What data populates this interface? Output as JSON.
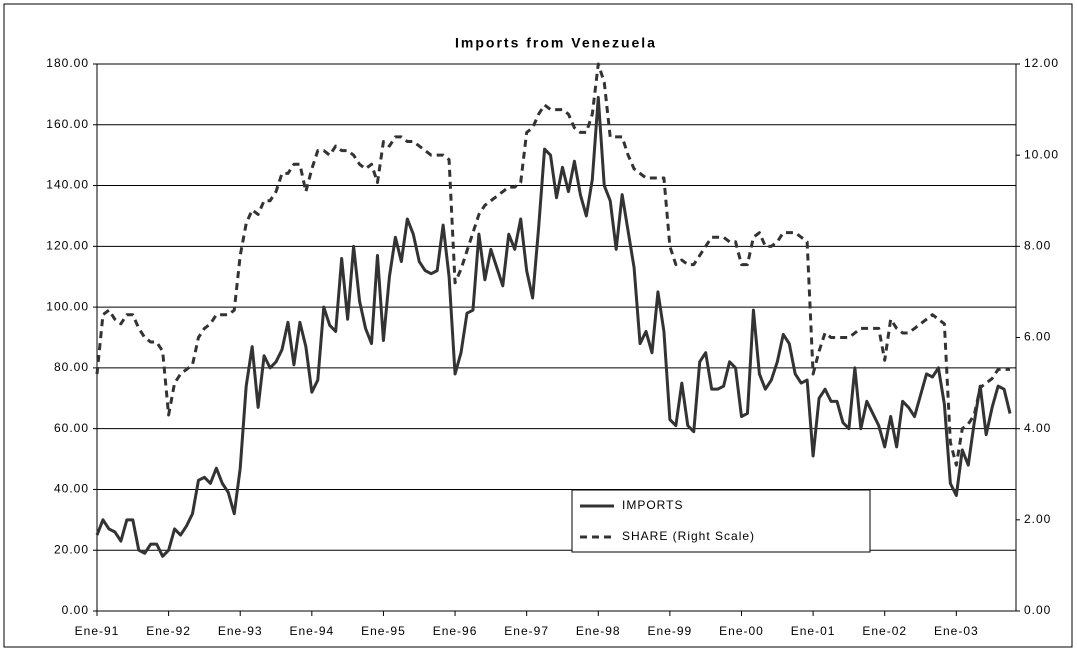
{
  "chart_data": {
    "type": "line",
    "title": "Imports from Venezuela",
    "categories": [
      "Ene-91",
      null,
      null,
      null,
      null,
      null,
      null,
      null,
      null,
      null,
      null,
      null,
      "Ene-92",
      null,
      null,
      null,
      null,
      null,
      null,
      null,
      null,
      null,
      null,
      null,
      "Ene-93",
      null,
      null,
      null,
      null,
      null,
      null,
      null,
      null,
      null,
      null,
      null,
      "Ene-94",
      null,
      null,
      null,
      null,
      null,
      null,
      null,
      null,
      null,
      null,
      null,
      "Ene-95",
      null,
      null,
      null,
      null,
      null,
      null,
      null,
      null,
      null,
      null,
      null,
      "Ene-96",
      null,
      null,
      null,
      null,
      null,
      null,
      null,
      null,
      null,
      null,
      null,
      "Ene-97",
      null,
      null,
      null,
      null,
      null,
      null,
      null,
      null,
      null,
      null,
      null,
      "Ene-98",
      null,
      null,
      null,
      null,
      null,
      null,
      null,
      null,
      null,
      null,
      null,
      "Ene-99",
      null,
      null,
      null,
      null,
      null,
      null,
      null,
      null,
      null,
      null,
      null,
      "Ene-00",
      null,
      null,
      null,
      null,
      null,
      null,
      null,
      null,
      null,
      null,
      null,
      "Ene-01",
      null,
      null,
      null,
      null,
      null,
      null,
      null,
      null,
      null,
      null,
      null,
      "Ene-02",
      null,
      null,
      null,
      null,
      null,
      null,
      null,
      null,
      null,
      null,
      null,
      "Ene-03",
      null,
      null,
      null,
      null,
      null,
      null,
      null,
      null,
      null
    ],
    "series": [
      {
        "name": "IMPORTS",
        "color": "#333333",
        "style": "solid",
        "values": [
          25,
          30,
          27,
          26,
          23,
          30,
          30,
          20,
          19,
          22,
          22,
          18,
          20,
          27,
          25,
          28,
          32,
          43,
          44,
          42,
          47,
          42,
          39,
          32,
          47,
          74,
          87,
          67,
          84,
          80,
          82,
          86,
          95,
          81,
          95,
          87,
          72,
          76,
          100,
          94,
          92,
          116,
          96,
          120,
          102,
          93,
          88,
          117,
          89,
          110,
          123,
          115,
          129,
          124,
          115,
          112,
          111,
          112,
          127,
          110,
          78,
          85,
          98,
          99,
          124,
          109,
          119,
          113,
          107,
          124,
          119,
          129,
          112,
          103,
          126,
          152,
          150,
          136,
          146,
          138,
          148,
          137,
          130,
          142,
          169,
          140,
          135,
          119,
          137,
          125,
          113,
          88,
          92,
          85,
          105,
          92,
          63,
          61,
          75,
          61,
          59,
          82,
          85,
          73,
          73,
          74,
          82,
          80,
          64,
          65,
          99,
          78,
          73,
          76,
          82,
          91,
          88,
          78,
          75,
          76,
          51,
          70,
          73,
          69,
          69,
          62,
          60,
          80,
          60,
          69,
          65,
          61,
          54,
          64,
          54,
          69,
          67,
          64,
          71,
          78,
          77,
          80,
          68,
          42,
          38,
          53,
          48,
          62,
          74,
          58,
          67,
          74,
          73,
          65
        ]
      },
      {
        "name": "SHARE (Right Scale)",
        "color": "#333333",
        "style": "dashed",
        "axis": "y2",
        "values": [
          5.2,
          6.5,
          6.6,
          6.4,
          6.3,
          6.5,
          6.5,
          6.2,
          6.0,
          5.9,
          5.9,
          5.7,
          4.3,
          5.0,
          5.2,
          5.3,
          5.4,
          6.0,
          6.2,
          6.3,
          6.5,
          6.5,
          6.5,
          6.6,
          7.8,
          8.5,
          8.8,
          8.7,
          9.0,
          9.0,
          9.2,
          9.6,
          9.6,
          9.8,
          9.8,
          9.2,
          9.7,
          10.1,
          10.1,
          10.0,
          10.2,
          10.1,
          10.1,
          10.0,
          9.8,
          9.7,
          9.8,
          9.4,
          10.3,
          10.2,
          10.4,
          10.4,
          10.3,
          10.3,
          10.2,
          10.1,
          10.0,
          10.0,
          10.0,
          9.9,
          7.2,
          7.5,
          7.9,
          8.3,
          8.7,
          8.9,
          9.0,
          9.1,
          9.2,
          9.3,
          9.3,
          9.4,
          10.5,
          10.6,
          10.9,
          11.1,
          11.0,
          11.0,
          11.0,
          10.9,
          10.6,
          10.5,
          10.5,
          10.9,
          12.0,
          11.6,
          10.4,
          10.4,
          10.4,
          10.0,
          9.7,
          9.6,
          9.5,
          9.5,
          9.5,
          9.5,
          8.0,
          7.6,
          7.7,
          7.6,
          7.6,
          7.8,
          8.0,
          8.2,
          8.2,
          8.2,
          8.1,
          8.1,
          7.6,
          7.6,
          8.2,
          8.3,
          8.0,
          8.0,
          8.1,
          8.3,
          8.3,
          8.3,
          8.2,
          8.1,
          5.2,
          5.7,
          6.1,
          6.0,
          6.0,
          6.0,
          6.0,
          6.1,
          6.2,
          6.2,
          6.2,
          6.2,
          5.5,
          6.4,
          6.2,
          6.1,
          6.1,
          6.2,
          6.3,
          6.4,
          6.5,
          6.4,
          6.3,
          3.7,
          3.2,
          4.0,
          4.1,
          4.3,
          4.9,
          5.0,
          5.1,
          5.3,
          5.3,
          5.3
        ]
      }
    ],
    "ylim": [
      0,
      180
    ],
    "yticks": [
      {
        "value": 0,
        "label": "0.00"
      },
      {
        "value": 20,
        "label": "20.00"
      },
      {
        "value": 40,
        "label": "40.00"
      },
      {
        "value": 60,
        "label": "60.00"
      },
      {
        "value": 80,
        "label": "80.00"
      },
      {
        "value": 100,
        "label": "100.00"
      },
      {
        "value": 120,
        "label": "120.00"
      },
      {
        "value": 140,
        "label": "140.00"
      },
      {
        "value": 160,
        "label": "160.00"
      },
      {
        "value": 180,
        "label": "180.00"
      }
    ],
    "y2lim": [
      0,
      12
    ],
    "y2ticks": [
      {
        "value": 0,
        "label": "0.00"
      },
      {
        "value": 2,
        "label": "2.00"
      },
      {
        "value": 4,
        "label": "4.00"
      },
      {
        "value": 6,
        "label": "6.00"
      },
      {
        "value": 8,
        "label": "8.00"
      },
      {
        "value": 10,
        "label": "10.00"
      },
      {
        "value": 12,
        "label": "12.00"
      }
    ],
    "grid": true,
    "legend": "lower right"
  }
}
